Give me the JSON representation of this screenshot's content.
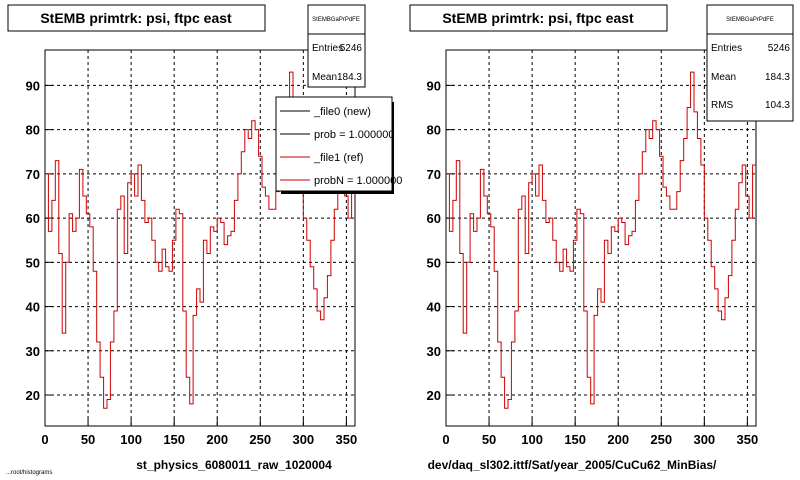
{
  "footer_text": "...root/histograms",
  "chart_data": [
    {
      "type": "line",
      "title": "StEMB primtrk: psi, ftpc east",
      "xlabel": "st_physics_6080011_raw_1020004",
      "ylabel": "",
      "xlim": [
        0,
        360
      ],
      "ylim": [
        13,
        98
      ],
      "x_ticks": [
        0,
        50,
        100,
        150,
        200,
        250,
        300,
        350
      ],
      "y_ticks": [
        20,
        30,
        40,
        50,
        60,
        70,
        80,
        90
      ],
      "grid": true,
      "series_color": "#cc0000",
      "stats": {
        "name": "StEMBGaPrPdFE",
        "rows": [
          {
            "label": "Entries",
            "value": "5246"
          },
          {
            "label": "Mean",
            "value": "184.3"
          }
        ]
      },
      "legend": [
        {
          "label": "_file0 (new)",
          "color": "#000000"
        },
        {
          "label": "prob = 1.000000",
          "color": "#000000"
        },
        {
          "label": "_file1 (ref)",
          "color": "#cc0000"
        },
        {
          "label": "probN = 1.000000",
          "color": "#cc0000"
        }
      ],
      "series": [
        {
          "values": [
            70,
            57,
            64,
            73,
            52,
            34,
            50,
            61,
            57,
            60,
            71,
            65,
            61,
            58,
            48,
            32,
            24,
            17,
            19,
            32,
            39,
            62,
            65,
            52,
            68,
            70,
            65,
            72,
            64,
            59,
            60,
            55,
            50,
            48,
            53,
            49,
            48,
            55,
            62,
            61,
            39,
            24,
            18,
            38,
            44,
            41,
            55,
            52,
            58,
            57,
            60,
            59,
            54,
            56,
            57,
            64,
            70,
            75,
            80,
            78,
            82,
            80,
            74,
            67,
            65,
            62,
            62,
            66,
            73,
            78,
            85,
            93,
            84,
            78,
            72,
            60,
            55,
            49,
            44,
            39,
            37,
            42,
            47,
            55,
            62,
            68,
            72,
            65,
            60,
            72
          ]
        }
      ]
    },
    {
      "type": "line",
      "title": "StEMB primtrk: psi, ftpc east",
      "xlabel": "dev/daq_sl302.ittf/Sat/year_2005/CuCu62_MinBias/",
      "ylabel": "",
      "xlim": [
        0,
        360
      ],
      "ylim": [
        13,
        98
      ],
      "x_ticks": [
        0,
        50,
        100,
        150,
        200,
        250,
        300,
        350
      ],
      "y_ticks": [
        20,
        30,
        40,
        50,
        60,
        70,
        80,
        90
      ],
      "grid": true,
      "series_color": "#cc0000",
      "stats": {
        "name": "StEMBGaPrPdFE",
        "rows": [
          {
            "label": "Entries",
            "value": "5246"
          },
          {
            "label": "Mean",
            "value": "184.3"
          },
          {
            "label": "RMS",
            "value": "104.3"
          }
        ]
      },
      "series": [
        {
          "values": [
            70,
            57,
            64,
            73,
            52,
            34,
            50,
            61,
            57,
            60,
            71,
            65,
            61,
            58,
            48,
            32,
            24,
            17,
            19,
            32,
            39,
            62,
            65,
            52,
            68,
            70,
            65,
            72,
            64,
            59,
            60,
            55,
            50,
            48,
            53,
            49,
            48,
            55,
            62,
            61,
            39,
            24,
            18,
            38,
            44,
            41,
            55,
            52,
            58,
            57,
            60,
            59,
            54,
            56,
            57,
            64,
            70,
            75,
            80,
            78,
            82,
            80,
            74,
            67,
            65,
            62,
            62,
            66,
            73,
            78,
            85,
            93,
            84,
            78,
            72,
            60,
            55,
            49,
            44,
            39,
            37,
            42,
            47,
            55,
            62,
            68,
            72,
            65,
            60,
            72
          ]
        }
      ]
    }
  ]
}
